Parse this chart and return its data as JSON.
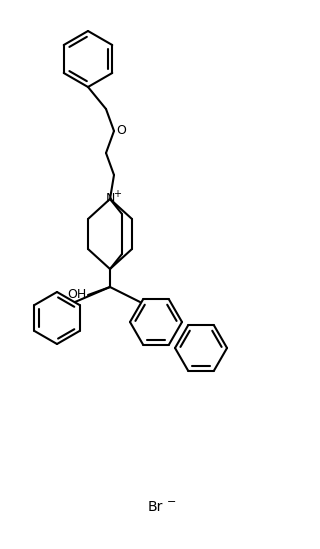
{
  "bg_color": "#ffffff",
  "line_color": "#000000",
  "lw": 1.5,
  "br_text": "Br",
  "br_sup": "-",
  "atoms": {
    "N_label": "N",
    "N_charge": "+",
    "O_benzyl": "O",
    "OH_label": "OH"
  }
}
